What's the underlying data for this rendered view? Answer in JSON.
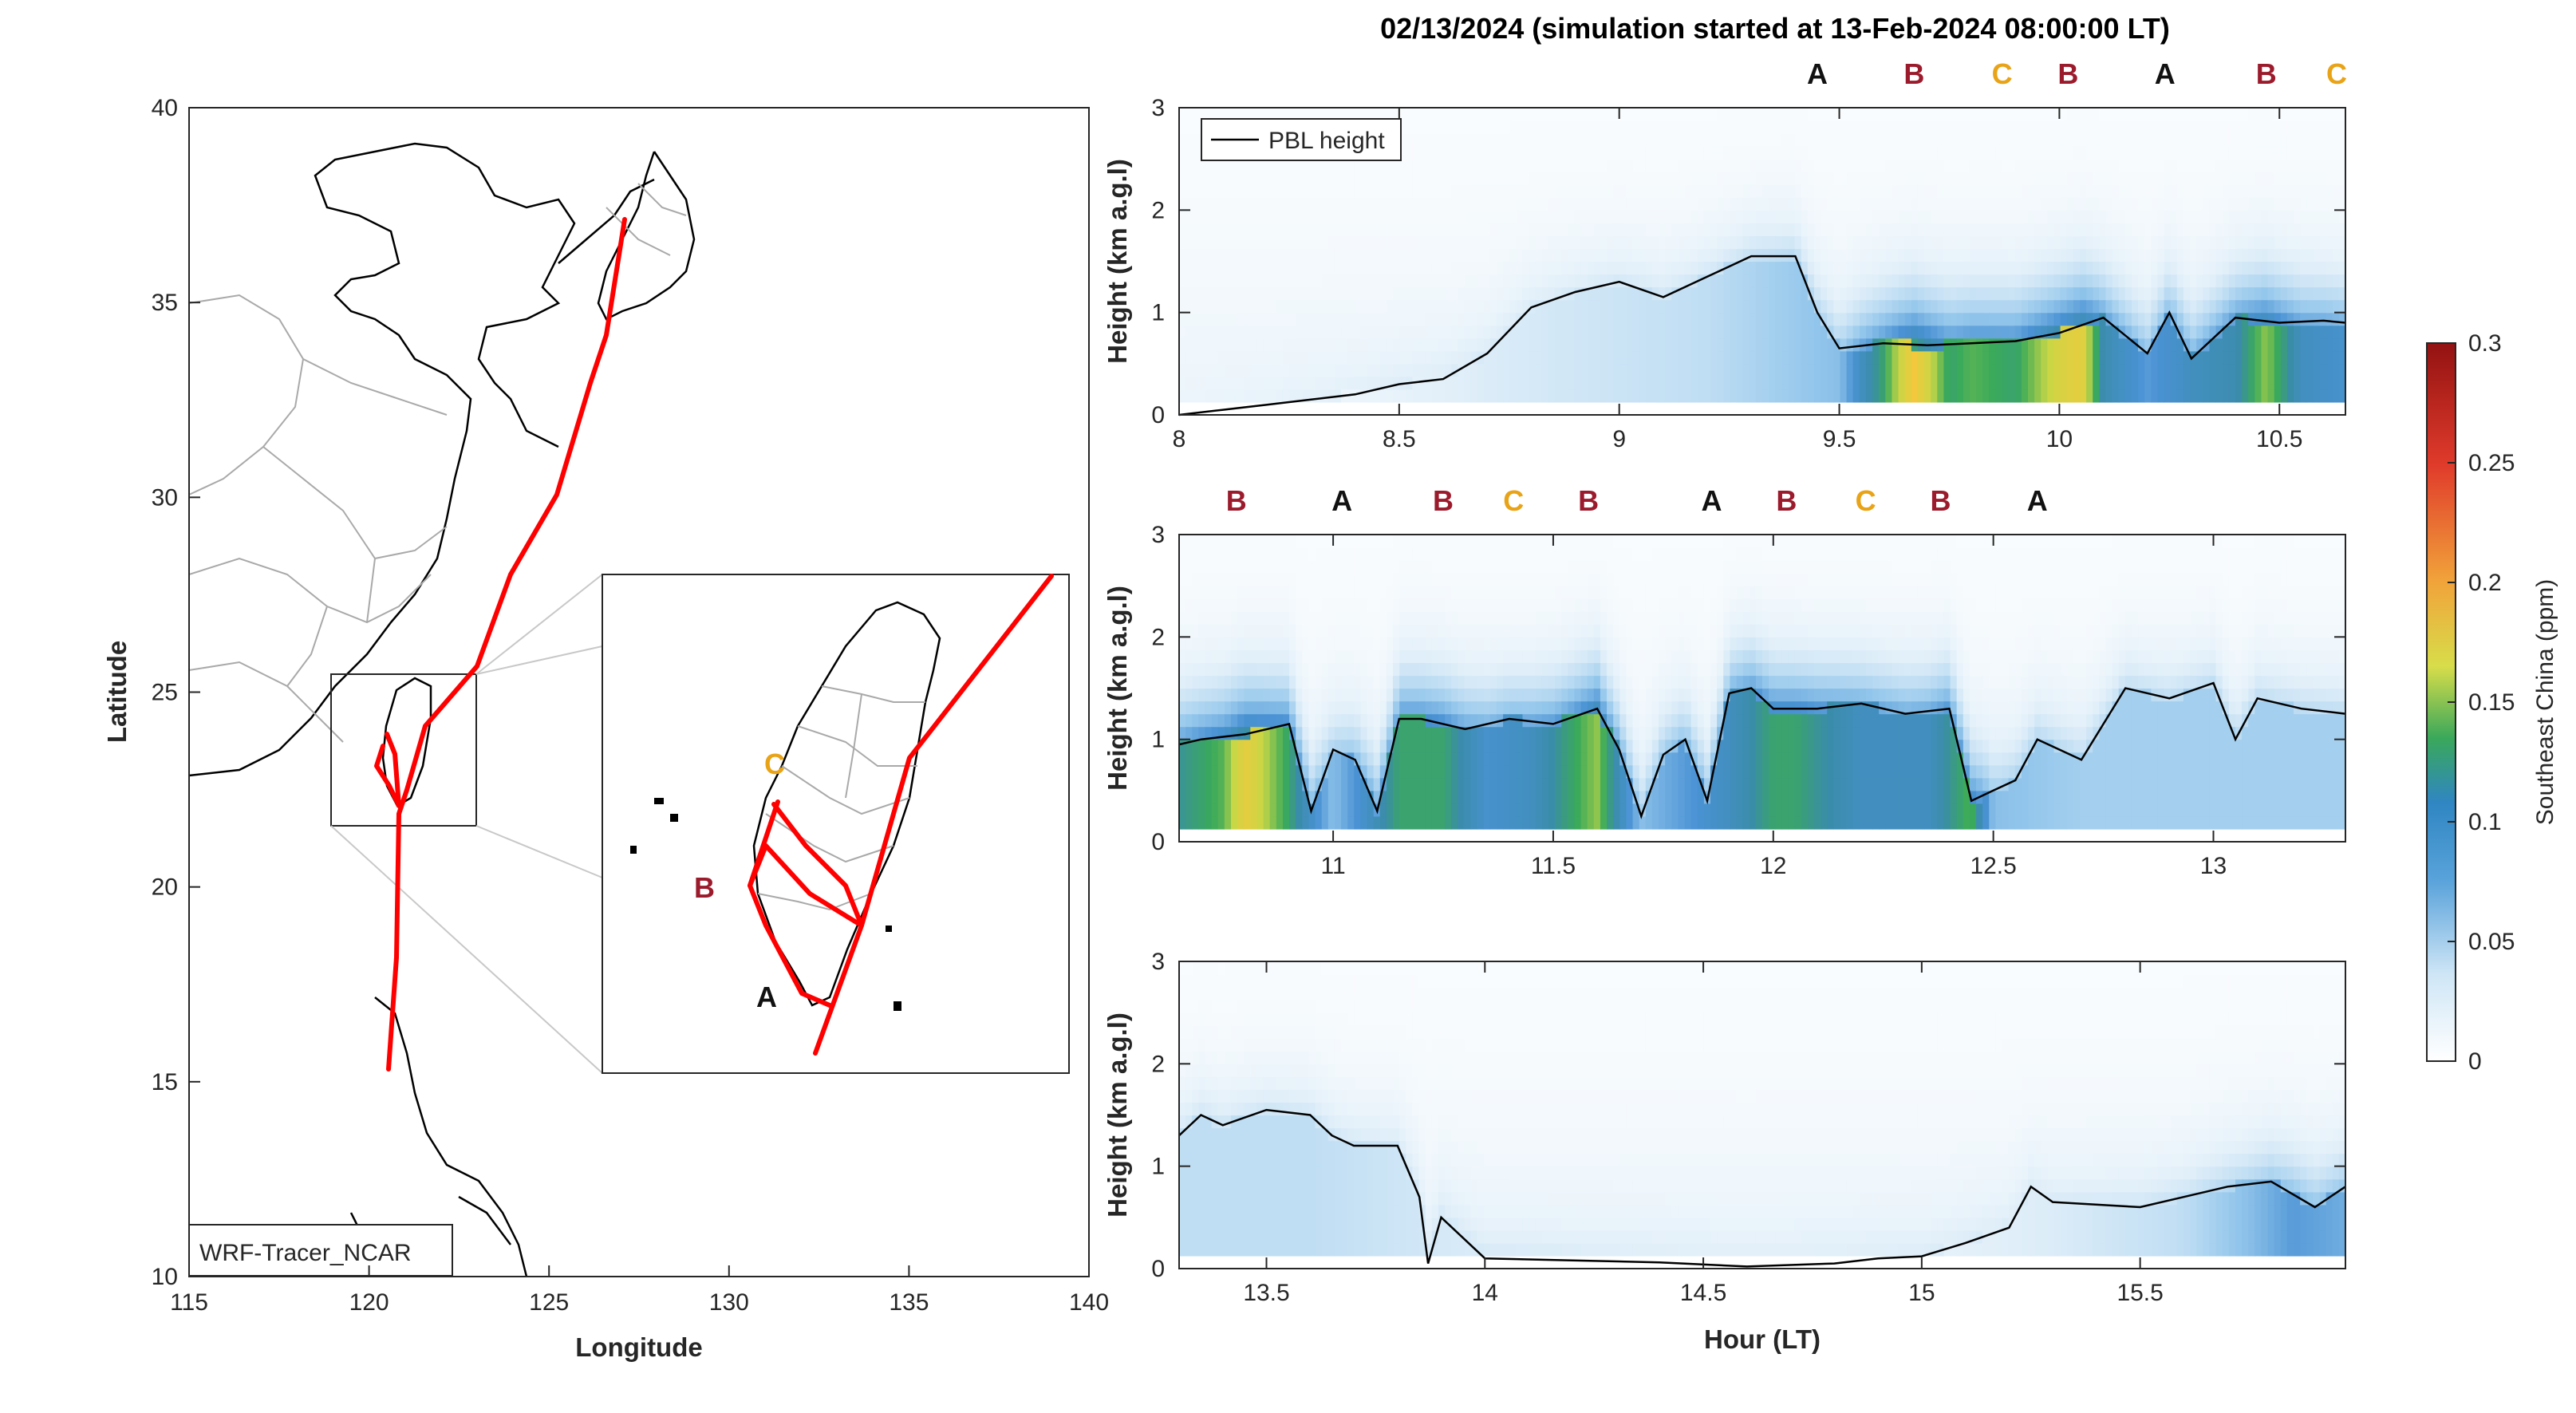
{
  "colors": {
    "A": "#111111",
    "B": "#9b1b2c",
    "C": "#e8a317",
    "track": "#ff0000",
    "pbl": "#000000"
  },
  "map": {
    "xlabel": "Longitude",
    "ylabel": "Latitude",
    "xticks": [
      "115",
      "120",
      "125",
      "130",
      "135",
      "140"
    ],
    "yticks": [
      "10",
      "15",
      "20",
      "25",
      "30",
      "35",
      "40"
    ],
    "xlim": [
      115,
      140
    ],
    "ylim": [
      10,
      40
    ],
    "model_label": "WRF-Tracer_NCAR",
    "inset_labels": [
      {
        "text": "C",
        "key": "C"
      },
      {
        "text": "B",
        "key": "B"
      },
      {
        "text": "A",
        "key": "A"
      }
    ]
  },
  "title": "02/13/2024 (simulation started at 13-Feb-2024 08:00:00 LT)",
  "colorbar": {
    "label": "Southeast China (ppm)",
    "ticks": [
      "0",
      "0.05",
      "0.1",
      "0.15",
      "0.2",
      "0.25",
      "0.3"
    ],
    "range": [
      0,
      0.3
    ]
  },
  "chart_data": [
    {
      "type": "heatmap",
      "xlabel": "",
      "ylabel": "Height (km a.g.l)",
      "xlim": [
        8,
        10.65
      ],
      "ylim": [
        0,
        3
      ],
      "xticks": [
        "8",
        "8.5",
        "9",
        "9.5",
        "10",
        "10.5"
      ],
      "yticks": [
        "0",
        "1",
        "2",
        "3"
      ],
      "legend": {
        "entry": "PBL height",
        "position": "top-left"
      },
      "markers": [
        {
          "text": "A",
          "key": "A",
          "x": 9.45
        },
        {
          "text": "B",
          "key": "B",
          "x": 9.67
        },
        {
          "text": "C",
          "key": "C",
          "x": 9.87
        },
        {
          "text": "B",
          "key": "B",
          "x": 10.02
        },
        {
          "text": "A",
          "key": "A",
          "x": 10.24
        },
        {
          "text": "B",
          "key": "B",
          "x": 10.47
        },
        {
          "text": "C",
          "key": "C",
          "x": 10.63
        }
      ],
      "pbl": {
        "x": [
          8,
          8.1,
          8.2,
          8.3,
          8.4,
          8.5,
          8.6,
          8.7,
          8.8,
          8.9,
          9.0,
          9.1,
          9.2,
          9.3,
          9.4,
          9.45,
          9.5,
          9.6,
          9.7,
          9.8,
          9.9,
          10.0,
          10.1,
          10.2,
          10.25,
          10.3,
          10.4,
          10.5,
          10.6,
          10.65
        ],
        "y": [
          0.0,
          0.05,
          0.1,
          0.15,
          0.2,
          0.3,
          0.35,
          0.6,
          1.05,
          1.2,
          1.3,
          1.15,
          1.35,
          1.55,
          1.55,
          1.0,
          0.65,
          0.7,
          0.68,
          0.7,
          0.72,
          0.8,
          0.95,
          0.6,
          1.0,
          0.55,
          0.95,
          0.9,
          0.92,
          0.9
        ]
      },
      "tracer": {
        "x": [
          8.0,
          8.7,
          9.2,
          9.5,
          9.55,
          9.6,
          9.67,
          9.75,
          9.8,
          9.9,
          10.0,
          10.05,
          10.1,
          10.2,
          10.3,
          10.4,
          10.47,
          10.55,
          10.65
        ],
        "values": [
          0.0,
          0.02,
          0.03,
          0.05,
          0.09,
          0.12,
          0.18,
          0.12,
          0.13,
          0.12,
          0.16,
          0.17,
          0.1,
          0.07,
          0.09,
          0.1,
          0.14,
          0.09,
          0.08
        ]
      }
    },
    {
      "type": "heatmap",
      "xlabel": "",
      "ylabel": "Height (km a.g.l)",
      "xlim": [
        10.65,
        13.3
      ],
      "ylim": [
        0,
        3
      ],
      "xticks": [
        "11",
        "11.5",
        "12",
        "12.5",
        "13"
      ],
      "yticks": [
        "0",
        "1",
        "2",
        "3"
      ],
      "markers": [
        {
          "text": "B",
          "key": "B",
          "x": 10.78
        },
        {
          "text": "A",
          "key": "A",
          "x": 11.02
        },
        {
          "text": "B",
          "key": "B",
          "x": 11.25
        },
        {
          "text": "C",
          "key": "C",
          "x": 11.41
        },
        {
          "text": "B",
          "key": "B",
          "x": 11.58
        },
        {
          "text": "A",
          "key": "A",
          "x": 11.86
        },
        {
          "text": "B",
          "key": "B",
          "x": 12.03
        },
        {
          "text": "C",
          "key": "C",
          "x": 12.21
        },
        {
          "text": "B",
          "key": "B",
          "x": 12.38
        },
        {
          "text": "A",
          "key": "A",
          "x": 12.6
        }
      ],
      "pbl": {
        "x": [
          10.65,
          10.7,
          10.8,
          10.9,
          10.95,
          11.0,
          11.05,
          11.1,
          11.15,
          11.2,
          11.3,
          11.4,
          11.5,
          11.6,
          11.65,
          11.7,
          11.75,
          11.8,
          11.85,
          11.9,
          11.95,
          12.0,
          12.1,
          12.2,
          12.3,
          12.4,
          12.45,
          12.5,
          12.55,
          12.6,
          12.7,
          12.8,
          12.9,
          13.0,
          13.05,
          13.1,
          13.2,
          13.3
        ],
        "y": [
          0.95,
          1.0,
          1.05,
          1.15,
          0.3,
          0.9,
          0.8,
          0.3,
          1.2,
          1.2,
          1.1,
          1.2,
          1.15,
          1.3,
          0.9,
          0.25,
          0.85,
          1.0,
          0.4,
          1.45,
          1.5,
          1.3,
          1.3,
          1.35,
          1.25,
          1.3,
          0.4,
          0.5,
          0.6,
          1.0,
          0.8,
          1.5,
          1.4,
          1.55,
          1.0,
          1.4,
          1.3,
          1.25
        ]
      },
      "tracer": {
        "x": [
          10.65,
          10.75,
          10.8,
          10.9,
          11.0,
          11.15,
          11.25,
          11.35,
          11.45,
          11.6,
          11.7,
          11.9,
          12.0,
          12.05,
          12.2,
          12.35,
          12.45,
          12.5,
          12.7,
          13.0,
          13.3
        ],
        "values": [
          0.11,
          0.13,
          0.17,
          0.12,
          0.05,
          0.12,
          0.12,
          0.08,
          0.09,
          0.14,
          0.05,
          0.09,
          0.12,
          0.12,
          0.09,
          0.09,
          0.13,
          0.05,
          0.04,
          0.04,
          0.04
        ]
      }
    },
    {
      "type": "heatmap",
      "xlabel": "Hour (LT)",
      "ylabel": "Height (km a.g.l)",
      "xlim": [
        13.3,
        15.97
      ],
      "ylim": [
        0,
        3
      ],
      "xticks": [
        "13.5",
        "14",
        "14.5",
        "15",
        "15.5"
      ],
      "yticks": [
        "0",
        "1",
        "2",
        "3"
      ],
      "pbl": {
        "x": [
          13.3,
          13.35,
          13.4,
          13.5,
          13.6,
          13.65,
          13.7,
          13.8,
          13.85,
          13.87,
          13.9,
          14.0,
          14.2,
          14.4,
          14.6,
          14.8,
          14.9,
          15.0,
          15.1,
          15.2,
          15.25,
          15.3,
          15.5,
          15.6,
          15.7,
          15.8,
          15.9,
          15.97
        ],
        "y": [
          1.3,
          1.5,
          1.4,
          1.55,
          1.5,
          1.3,
          1.2,
          1.2,
          0.7,
          0.05,
          0.5,
          0.1,
          0.08,
          0.06,
          0.02,
          0.05,
          0.1,
          0.12,
          0.25,
          0.4,
          0.8,
          0.65,
          0.6,
          0.7,
          0.8,
          0.85,
          0.6,
          0.8
        ]
      },
      "tracer": {
        "x": [
          13.3,
          13.6,
          14.0,
          14.5,
          15.0,
          15.3,
          15.6,
          15.75,
          15.85,
          15.97
        ],
        "values": [
          0.03,
          0.03,
          0.02,
          0.015,
          0.015,
          0.02,
          0.03,
          0.05,
          0.07,
          0.06
        ]
      }
    }
  ]
}
